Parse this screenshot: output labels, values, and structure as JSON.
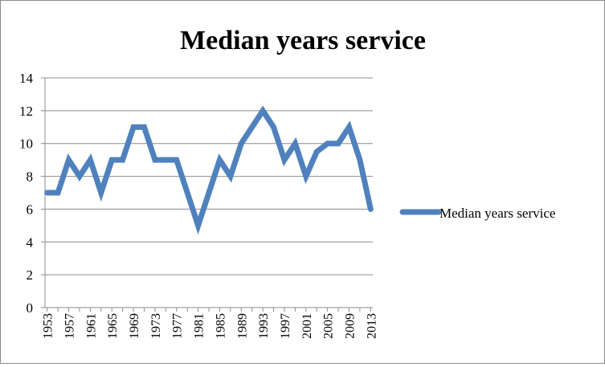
{
  "chart_data": {
    "type": "line",
    "title": "Median years service",
    "xlabel": "",
    "ylabel": "",
    "ylim": [
      0,
      14
    ],
    "yticks": [
      0,
      2,
      4,
      6,
      8,
      10,
      12,
      14
    ],
    "xtick_labels": [
      "1953",
      "1957",
      "1961",
      "1965",
      "1969",
      "1973",
      "1977",
      "1981",
      "1985",
      "1989",
      "1993",
      "1997",
      "2001",
      "2005",
      "2009",
      "2013"
    ],
    "x": [
      1953,
      1955,
      1957,
      1959,
      1961,
      1963,
      1965,
      1967,
      1969,
      1971,
      1973,
      1975,
      1977,
      1979,
      1981,
      1983,
      1985,
      1987,
      1989,
      1991,
      1993,
      1995,
      1997,
      1999,
      2001,
      2003,
      2005,
      2007,
      2009,
      2011,
      2013
    ],
    "series": [
      {
        "name": "Median years service",
        "color": "#4f81bd",
        "values": [
          7,
          7,
          9,
          8,
          9,
          7,
          9,
          9,
          11,
          11,
          9,
          9,
          9,
          7,
          5,
          7,
          9,
          8,
          10,
          11,
          12,
          11,
          9,
          10,
          8,
          9.5,
          10,
          10,
          11,
          9,
          6
        ]
      }
    ],
    "grid": true,
    "legend_position": "right"
  }
}
